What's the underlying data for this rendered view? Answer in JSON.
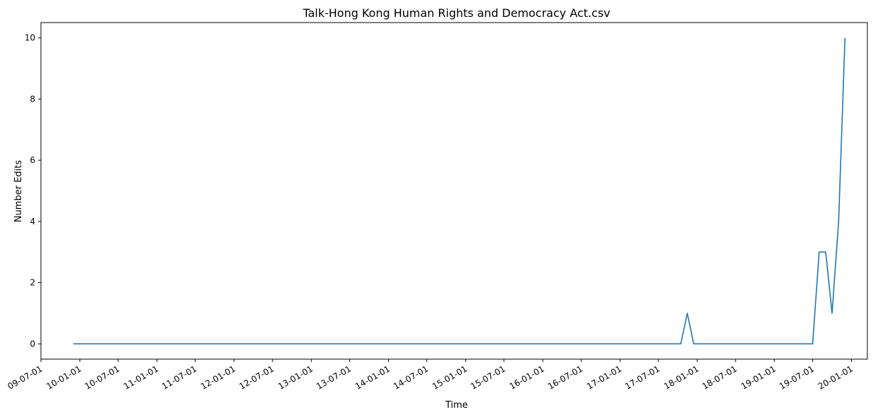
{
  "chart_data": {
    "type": "line",
    "title": "Talk-Hong Kong Human Rights and Democracy Act.csv",
    "xlabel": "Time",
    "ylabel": "Number Edits",
    "grid": false,
    "legend": "none",
    "line_color": "#1f77b4",
    "xlim": [
      "2009-07-01",
      "2020-03-16"
    ],
    "ylim": [
      -0.5,
      10.5
    ],
    "x_ticks": [
      "2009-07-01",
      "2010-01-01",
      "2010-07-01",
      "2011-01-01",
      "2011-07-01",
      "2012-01-01",
      "2012-07-01",
      "2013-01-01",
      "2013-07-01",
      "2014-01-01",
      "2014-07-01",
      "2015-01-01",
      "2015-07-01",
      "2016-01-01",
      "2016-07-01",
      "2017-01-01",
      "2017-07-01",
      "2018-01-01",
      "2018-07-01",
      "2019-01-01",
      "2019-07-01",
      "2020-01-01"
    ],
    "x_tick_labels": [
      "09-07-01",
      "10-01-01",
      "10-07-01",
      "11-01-01",
      "11-07-01",
      "12-01-01",
      "12-07-01",
      "13-01-01",
      "13-07-01",
      "14-01-01",
      "14-07-01",
      "15-01-01",
      "15-07-01",
      "16-01-01",
      "16-07-01",
      "17-01-01",
      "17-07-01",
      "18-01-01",
      "18-07-01",
      "19-01-01",
      "19-07-01",
      "20-01-01"
    ],
    "y_ticks": [
      0,
      2,
      4,
      6,
      8,
      10
    ],
    "y_tick_labels": [
      "0",
      "2",
      "4",
      "6",
      "8",
      "10"
    ],
    "series": [
      {
        "x": [
          "2009-12-01",
          "2017-10-15",
          "2017-11-15",
          "2017-12-15",
          "2019-07-01",
          "2019-08-01",
          "2019-09-01",
          "2019-10-01",
          "2019-11-01",
          "2019-12-01"
        ],
        "y": [
          0,
          0,
          1,
          0,
          0,
          3,
          3,
          1,
          4,
          10
        ]
      }
    ]
  }
}
